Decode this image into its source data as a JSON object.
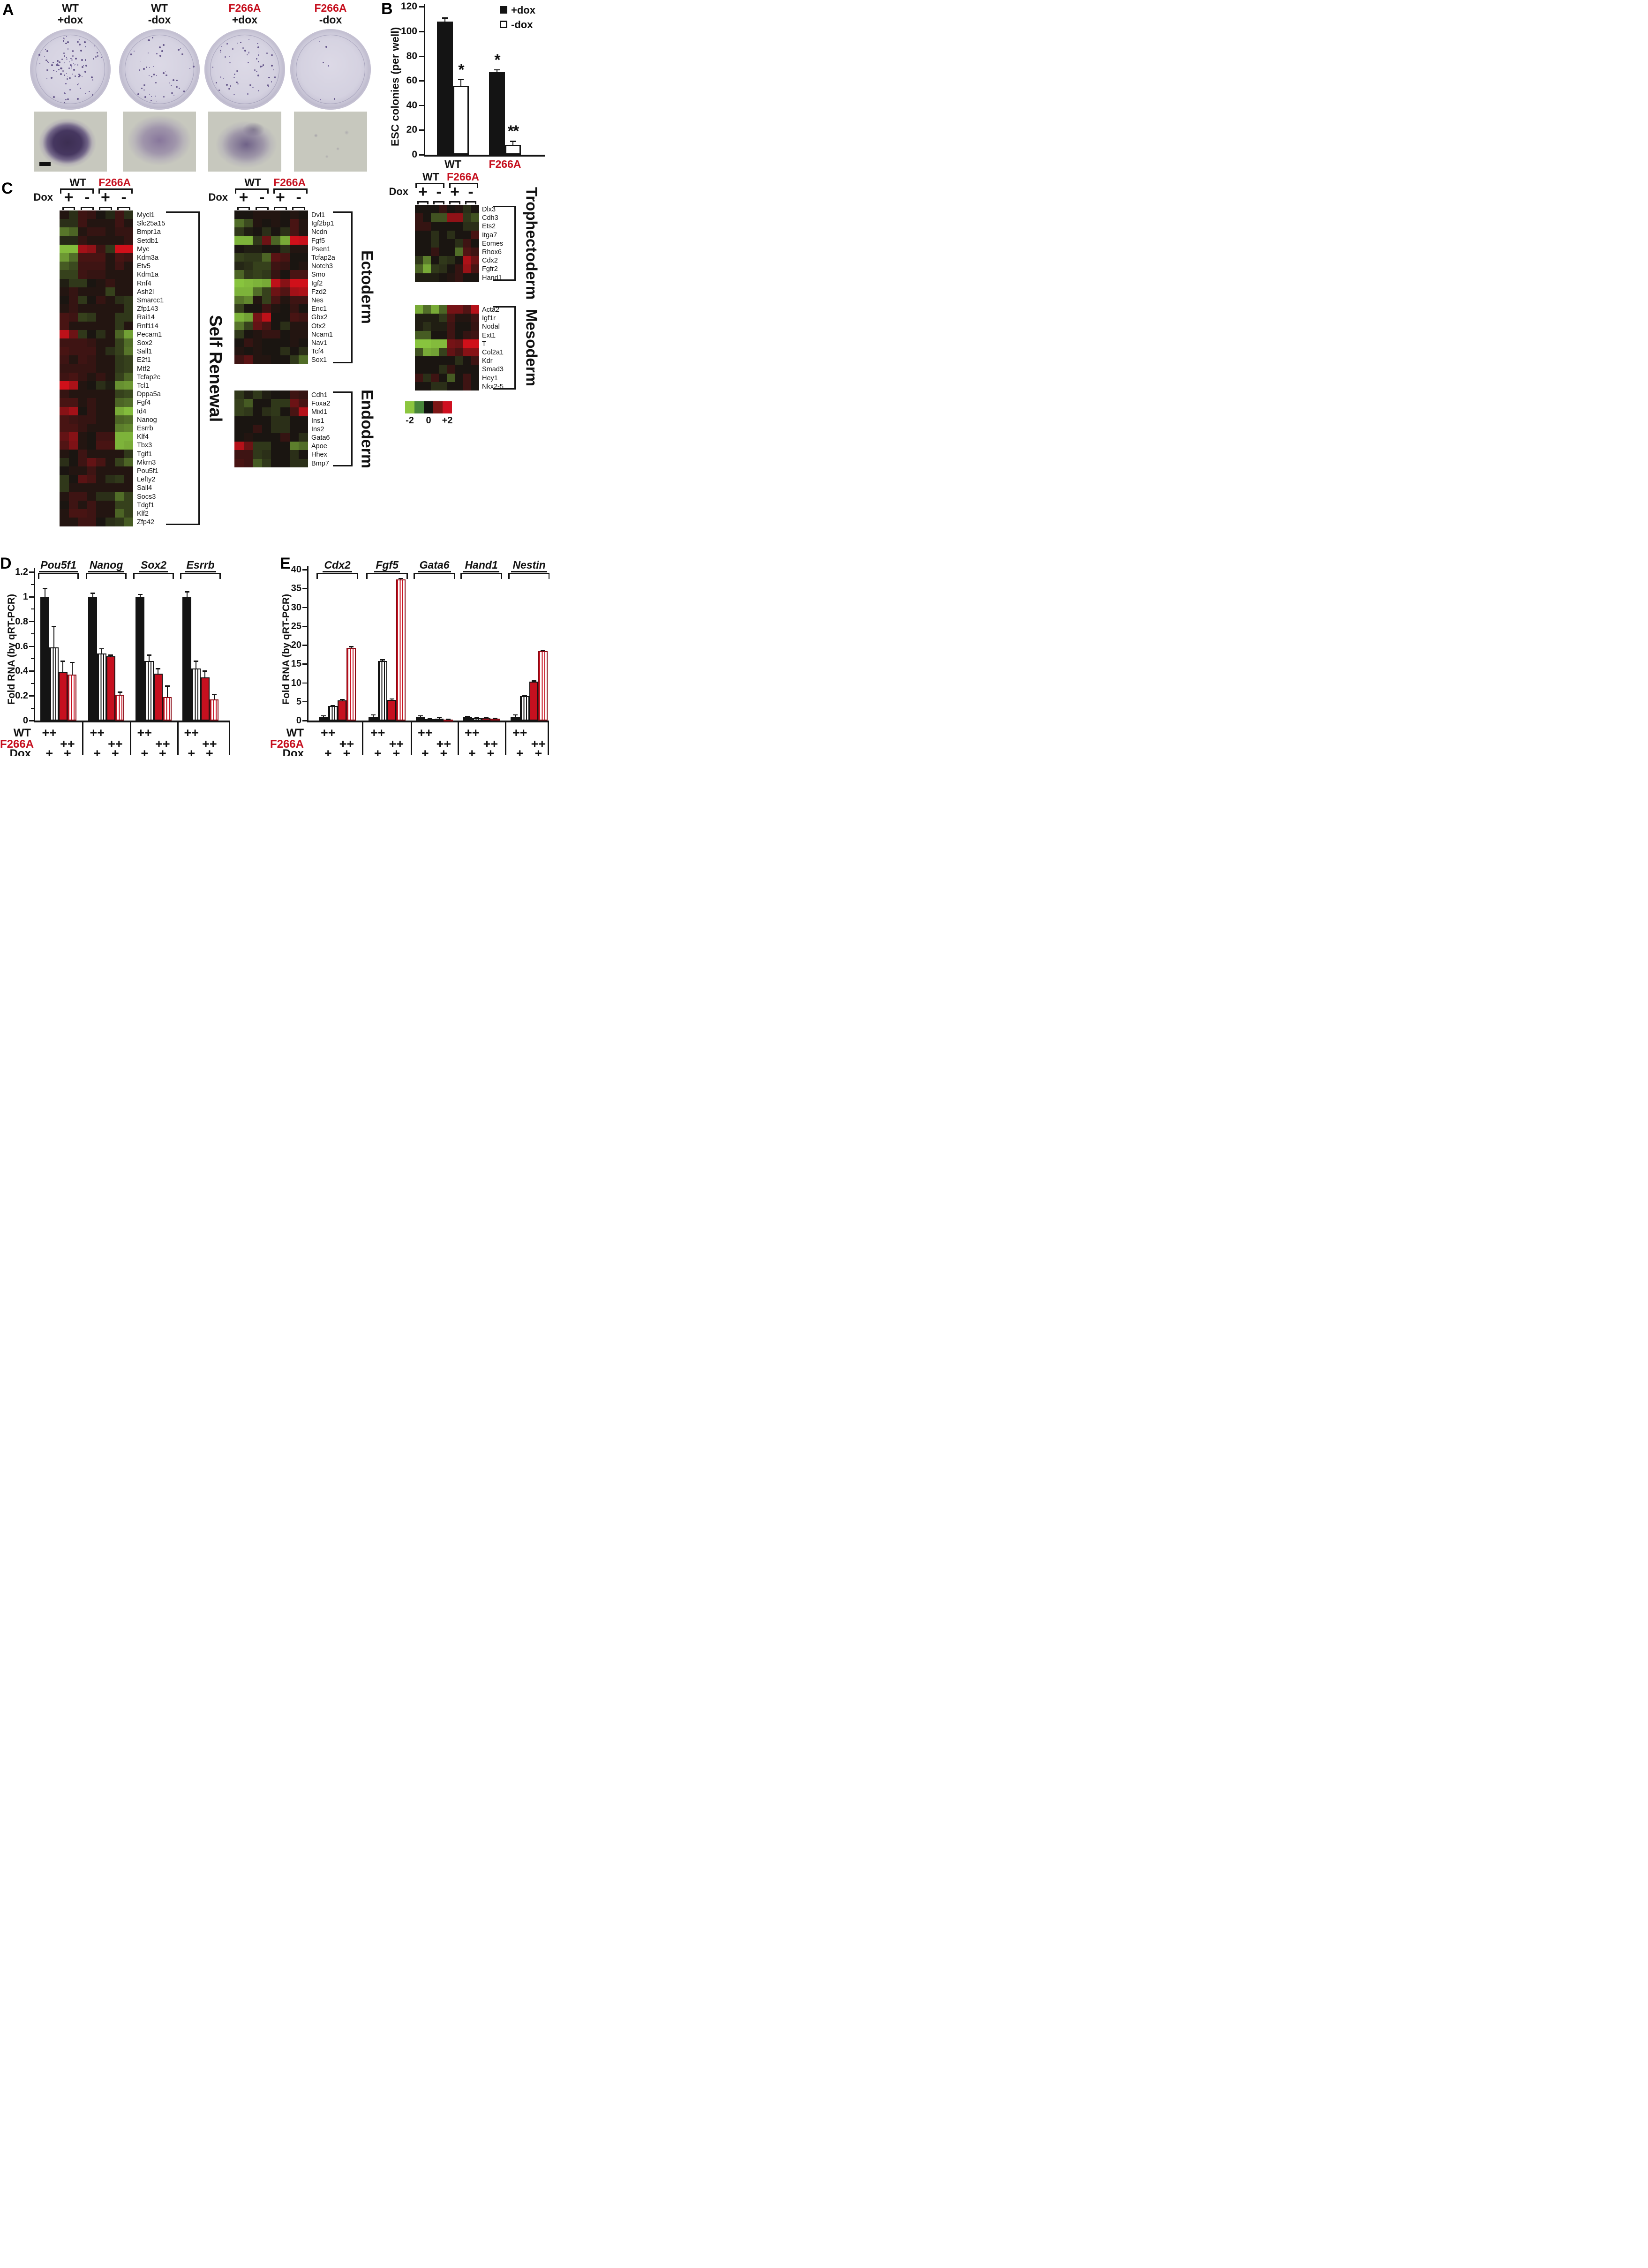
{
  "colors": {
    "accent_red": "#c6101f",
    "ink": "#141414"
  },
  "panelA": {
    "letter": "A",
    "columns": [
      {
        "genotype": "WT",
        "dox": "+dox",
        "genotype_color": "#141414",
        "colonies_visible": 105,
        "micrograph": "dense",
        "scalebar": true
      },
      {
        "genotype": "WT",
        "dox": "-dox",
        "genotype_color": "#141414",
        "colonies_visible": 52,
        "micrograph": "diffuse",
        "scalebar": false
      },
      {
        "genotype": "F266A",
        "dox": "+dox",
        "genotype_color": "#c6101f",
        "colonies_visible": 58,
        "micrograph": "branched",
        "scalebar": false
      },
      {
        "genotype": "F266A",
        "dox": "-dox",
        "genotype_color": "#c6101f",
        "colonies_visible": 6,
        "micrograph": "sparse",
        "scalebar": false
      }
    ]
  },
  "panelB": {
    "letter": "B"
  },
  "panelC": {
    "letter": "C",
    "header": {
      "wt": "WT",
      "mutant": "F266A",
      "dox": "Dox",
      "plus": "+",
      "minus": "-"
    },
    "colorbar": {
      "min": "-2",
      "mid": "0",
      "max": "+2"
    }
  },
  "panelD": {
    "letter": "D",
    "row_labels": {
      "wt": "WT",
      "mutant": "F266A",
      "dox": "Dox"
    }
  },
  "panelE": {
    "letter": "E",
    "row_labels": {
      "wt": "WT",
      "mutant": "F266A",
      "dox": "Dox"
    }
  },
  "chart_data": [
    {
      "id": "B",
      "type": "bar",
      "title": "",
      "ylabel": "ESC colonies (per well)",
      "ylim": [
        0,
        120
      ],
      "ytick_step": 20,
      "categories": [
        {
          "label": "WT",
          "color": "#141414"
        },
        {
          "label": "F266A",
          "color": "#c6101f"
        }
      ],
      "legend": [
        {
          "label": "+dox",
          "fill": "black"
        },
        {
          "label": "-dox",
          "fill": "white"
        }
      ],
      "series": [
        {
          "name": "+dox",
          "values": [
            108,
            67
          ],
          "errors": [
            3,
            2
          ]
        },
        {
          "name": "-dox",
          "values": [
            56,
            8
          ],
          "errors": [
            5,
            3
          ]
        }
      ],
      "significance": [
        {
          "bar": "WT -dox",
          "mark": "*"
        },
        {
          "bar": "F266A +dox",
          "mark": "*"
        },
        {
          "bar": "F266A -dox",
          "mark": "**"
        }
      ]
    },
    {
      "id": "C-self-renewal",
      "type": "heatmap",
      "bracket_label": "Self Renewal",
      "scale": [
        -2,
        2
      ],
      "columns": [
        "WT +dox r1",
        "WT +dox r2",
        "WT -dox r1",
        "WT -dox r2",
        "F266A +dox r1",
        "F266A +dox r2",
        "F266A -dox r1",
        "F266A -dox r2"
      ],
      "genes": [
        "Mycl1",
        "Slc25a15",
        "Bmpr1a",
        "Setdb1",
        "Myc",
        "Kdm3a",
        "Etv5",
        "Kdm1a",
        "Rnf4",
        "Ash2l",
        "Smarcc1",
        "Zfp143",
        "Rai14",
        "Rnf114",
        "Pecam1",
        "Sox2",
        "Sall1",
        "E2f1",
        "Mtf2",
        "Tcfap2c",
        "Tcl1",
        "Dppa5a",
        "Fgf4",
        "Id4",
        "Nanog",
        "Esrrb",
        "Klf4",
        "Tbx3",
        "Tgif1",
        "Mkrn3",
        "Pou5f1",
        "Lefty2",
        "Sall4",
        "Socs3",
        "Tdgf1",
        "Klf2",
        "Zfp42"
      ],
      "values": [
        [
          0.1,
          -0.3,
          0.4,
          0.3,
          0,
          -0.2,
          0.4,
          -0.3
        ],
        [
          -0.3,
          -0.3,
          0.4,
          0.1,
          0.1,
          0.1,
          0.4,
          0.1
        ],
        [
          -1.1,
          -0.9,
          0.1,
          0.3,
          0.3,
          0.1,
          0.3,
          0.3
        ],
        [
          -0.2,
          -0.2,
          0.3,
          0.1,
          0.1,
          0.1,
          0.1,
          0.3
        ],
        [
          -1.9,
          -1.9,
          1.5,
          1.3,
          0.4,
          -0.4,
          2,
          2
        ],
        [
          -1.5,
          -1,
          0.5,
          0.5,
          0.5,
          0.1,
          0.5,
          0.4
        ],
        [
          -0.8,
          -0.6,
          0.4,
          0.4,
          0.4,
          0.1,
          0.4,
          0.1
        ],
        [
          -0.5,
          -0.5,
          0.4,
          0.3,
          0.3,
          0.1,
          0.1,
          0.1
        ],
        [
          -0.1,
          -0.4,
          -0.4,
          0,
          0.1,
          0.3,
          0.1,
          0.1
        ],
        [
          0.1,
          0.3,
          0.1,
          0.1,
          0.1,
          -0.5,
          0.1,
          0.1
        ],
        [
          0,
          0.3,
          -0.4,
          0,
          0.3,
          0.1,
          -0.3,
          -0.4
        ],
        [
          0.1,
          0.3,
          0.1,
          0.1,
          0.1,
          0.1,
          0.1,
          -0.4
        ],
        [
          0.5,
          0.4,
          -0.5,
          -0.4,
          0.1,
          0.1,
          -0.4,
          -0.4
        ],
        [
          0.5,
          0.1,
          0.1,
          0.1,
          0.1,
          0.1,
          -0.4,
          0.1
        ],
        [
          1.8,
          0.9,
          -0.4,
          0,
          -0.3,
          0.1,
          -0.9,
          -1.6
        ],
        [
          0.4,
          0.4,
          0.4,
          0.3,
          0.1,
          0.1,
          -0.5,
          -1
        ],
        [
          0.5,
          0.4,
          0.4,
          0.4,
          0.1,
          -0.3,
          -0.5,
          -1.1
        ],
        [
          0.4,
          0.1,
          0.4,
          0.3,
          0.1,
          0.1,
          -0.4,
          -0.5
        ],
        [
          0.3,
          0.3,
          0.3,
          0.3,
          0.1,
          0.1,
          -0.4,
          -0.5
        ],
        [
          0.4,
          0.5,
          0.3,
          0.1,
          0.3,
          0.1,
          -0.5,
          -0.9
        ],
        [
          2,
          1.6,
          0.1,
          0,
          -0.3,
          -0.1,
          -1.4,
          -1.5
        ],
        [
          0.3,
          0.1,
          0.1,
          0.1,
          0.1,
          0.1,
          -0.5,
          -0.6
        ],
        [
          0.5,
          0.5,
          0.1,
          0.3,
          0.1,
          0.1,
          -0.9,
          -1
        ],
        [
          1.2,
          1.5,
          0,
          0.3,
          0.1,
          0.1,
          -1.7,
          -1.9
        ],
        [
          0.5,
          0.4,
          0.3,
          0.3,
          0.1,
          0.1,
          -0.9,
          -1
        ],
        [
          0.5,
          0.5,
          0.3,
          0.1,
          0.1,
          0.1,
          -1.2,
          -1.3
        ],
        [
          0.8,
          1.2,
          0.1,
          0,
          0.4,
          0.4,
          -1.8,
          -1.8
        ],
        [
          0.6,
          1.1,
          0.1,
          0,
          0.5,
          0.5,
          -1.8,
          -1.7
        ],
        [
          0.1,
          0,
          0.4,
          0.1,
          0.1,
          0.1,
          0.1,
          -0.4
        ],
        [
          -0.3,
          0,
          0.4,
          0.8,
          0.5,
          0.1,
          -0.5,
          -0.9
        ],
        [
          0,
          0.1,
          0.1,
          0.4,
          0.1,
          0.1,
          0.1,
          0.1
        ],
        [
          -0.4,
          0,
          0.7,
          0.5,
          0.1,
          -0.3,
          -0.4,
          0.1
        ],
        [
          -0.4,
          0.1,
          0.1,
          0.1,
          0.1,
          0.1,
          0.1,
          0.1
        ],
        [
          0.1,
          0.4,
          0.4,
          0.1,
          -0.3,
          -0.3,
          -1,
          -0.5
        ],
        [
          0,
          0.4,
          0.1,
          0.4,
          0.1,
          0.1,
          -0.5,
          -0.5
        ],
        [
          0.1,
          0.5,
          0.5,
          0.4,
          0.1,
          0.1,
          -0.9,
          -0.5
        ],
        [
          0.1,
          0.1,
          0.4,
          0.4,
          0,
          -0.3,
          -0.4,
          -0.8
        ]
      ]
    },
    {
      "id": "C-ectoderm",
      "type": "heatmap",
      "bracket_label": "Ectoderm",
      "scale": [
        -2,
        2
      ],
      "genes": [
        "Dvl1",
        "Igf2bp1",
        "Ncdn",
        "Fgf5",
        "Psen1",
        "Tcfap2a",
        "Notch3",
        "Smo",
        "Igf2",
        "Fzd2",
        "Nes",
        "Enc1",
        "Gbx2",
        "Otx2",
        "Ncam1",
        "Nav1",
        "Tcf4",
        "Sox1"
      ],
      "values": [
        [
          0,
          0,
          0.1,
          0.1,
          0.1,
          0,
          0.1,
          0
        ],
        [
          -1,
          -0.6,
          0.1,
          0,
          0.1,
          0,
          0.5,
          0.1
        ],
        [
          -0.4,
          -0.1,
          0,
          -0.3,
          0,
          -0.3,
          0.5,
          0.1
        ],
        [
          -1.8,
          -1.8,
          -0.4,
          0.9,
          -0.9,
          -1.7,
          2,
          1.9
        ],
        [
          0,
          -0.1,
          -0.1,
          0,
          0,
          -0.3,
          0.1,
          0.1
        ],
        [
          -0.5,
          -0.4,
          -0.4,
          -0.9,
          0.7,
          0.5,
          0,
          0
        ],
        [
          -0.2,
          -0.3,
          -0.5,
          -0.5,
          0.4,
          0.3,
          0,
          0.1
        ],
        [
          -0.9,
          -0.4,
          -0.5,
          -0.4,
          0.3,
          0,
          0.5,
          0.5
        ],
        [
          -2,
          -1.9,
          -1.8,
          -1.7,
          1.8,
          1.2,
          2,
          2
        ],
        [
          -1.8,
          -1.8,
          -1,
          -0.5,
          0.9,
          0.6,
          1.5,
          1.6
        ],
        [
          -1.1,
          -1.3,
          0.1,
          -0.5,
          0.5,
          0.1,
          0.4,
          0.4
        ],
        [
          -0.5,
          0,
          0,
          0.4,
          0.1,
          0,
          0.3,
          0
        ],
        [
          -1.8,
          -1.6,
          1,
          1.8,
          0,
          0,
          0.5,
          0.4
        ],
        [
          -1.1,
          -0.5,
          0.8,
          0.5,
          0,
          -0.3,
          0.1,
          0.1
        ],
        [
          -0.4,
          0,
          0.1,
          0.3,
          0.3,
          0,
          0.1,
          0.1
        ],
        [
          0,
          0.3,
          0.1,
          0,
          0,
          0,
          0.1,
          0
        ],
        [
          0.1,
          0,
          0.1,
          0,
          0,
          -0.3,
          0,
          -0.3
        ],
        [
          0.4,
          0.7,
          0.1,
          0.1,
          0,
          0,
          -0.4,
          -1
        ]
      ]
    },
    {
      "id": "C-endoderm",
      "type": "heatmap",
      "bracket_label": "Endoderm",
      "scale": [
        -2,
        2
      ],
      "genes": [
        "Cdh1",
        "Foxa2",
        "Mixl1",
        "Ins1",
        "Ins2",
        "Gata6",
        "Apoe",
        "Hhex",
        "Bmp7"
      ],
      "values": [
        [
          -0.4,
          -0.1,
          -0.4,
          -0.1,
          0,
          0,
          0.4,
          0.3
        ],
        [
          -0.5,
          -0.8,
          0,
          0,
          -0.4,
          -0.4,
          0.9,
          0.5
        ],
        [
          -0.5,
          -0.4,
          0,
          -0.3,
          -0.4,
          0,
          0.5,
          1.7
        ],
        [
          0,
          0,
          0,
          0,
          -0.3,
          -0.3,
          0,
          0
        ],
        [
          0,
          0,
          0.3,
          0,
          -0.3,
          -0.3,
          0,
          0
        ],
        [
          0,
          0.1,
          0,
          0,
          0,
          0.3,
          0,
          -0.3
        ],
        [
          1.7,
          0.9,
          -0.4,
          -0.4,
          0,
          0,
          -1.2,
          -1
        ],
        [
          0.4,
          0.4,
          -0.4,
          -0.3,
          0,
          0,
          -0.3,
          0
        ],
        [
          0.5,
          0.4,
          -0.8,
          -0.4,
          0,
          0,
          -0.3,
          -0.3
        ]
      ]
    },
    {
      "id": "C-trophectoderm",
      "type": "heatmap",
      "bracket_label": "Trophectoderm",
      "scale": [
        -2,
        2
      ],
      "genes": [
        "Dlx3",
        "Cdh3",
        "Ets2",
        "Itga7",
        "Eomes",
        "Rhox6",
        "Cdx2",
        "Fgfr2",
        "Hand1"
      ],
      "values": [
        [
          0,
          0,
          0,
          0.3,
          0,
          0.1,
          -0.3,
          0
        ],
        [
          0.3,
          0,
          -0.7,
          -0.7,
          1.3,
          1.3,
          -0.4,
          -0.7
        ],
        [
          0.3,
          0.3,
          0,
          0,
          0,
          0,
          -0.3,
          -0.3
        ],
        [
          0,
          0,
          -0.3,
          0,
          -0.3,
          0,
          0,
          0.5
        ],
        [
          0,
          0,
          -0.3,
          0,
          0,
          -0.3,
          0.4,
          0
        ],
        [
          0,
          0,
          0.3,
          0,
          0,
          -1,
          0.6,
          0.4
        ],
        [
          -0.4,
          -1.2,
          0,
          -0.4,
          -0.3,
          0,
          1.6,
          0.9
        ],
        [
          -0.9,
          -1.7,
          -0.4,
          -0.3,
          0,
          0.3,
          1.4,
          0.5
        ],
        [
          -0.1,
          -0.1,
          -0.1,
          0,
          0.1,
          0.3,
          0,
          0
        ]
      ]
    },
    {
      "id": "C-mesoderm",
      "type": "heatmap",
      "bracket_label": "Mesoderm",
      "scale": [
        -2,
        2
      ],
      "genes": [
        "Acta2",
        "Igf1r",
        "Nodal",
        "Ext1",
        "T",
        "Col2a1",
        "Kdr",
        "Smad3",
        "Hey1",
        "Nkx2-5"
      ],
      "values": [
        [
          -1.7,
          -1,
          -1.7,
          -0.9,
          1,
          1,
          0.6,
          1.7
        ],
        [
          -0.1,
          -0.1,
          -0.1,
          -0.4,
          0.5,
          0.1,
          0.1,
          0.4
        ],
        [
          -0.1,
          -0.3,
          -0.1,
          -0.1,
          0.4,
          0,
          0,
          0.3
        ],
        [
          -0.8,
          -0.8,
          0,
          0,
          0.4,
          0,
          0.3,
          0.4
        ],
        [
          -2,
          -2,
          -1.9,
          -1.9,
          1,
          0.9,
          2,
          2
        ],
        [
          -0.7,
          -1.7,
          -1.6,
          -0.5,
          0.8,
          0.5,
          1.2,
          1.2
        ],
        [
          0,
          0,
          0,
          0,
          0,
          -0.3,
          0,
          0.4
        ],
        [
          0,
          0,
          0,
          -0.3,
          0.3,
          0,
          0,
          0
        ],
        [
          0.4,
          -0.3,
          0.4,
          0,
          -0.8,
          0,
          0.4,
          0
        ],
        [
          0,
          0,
          -0.3,
          -0.3,
          0,
          0,
          0.4,
          0
        ]
      ]
    },
    {
      "id": "D",
      "type": "bar",
      "ylabel": "Fold RNA (by qRT-PCR)",
      "ylim": [
        0,
        1.2
      ],
      "ytick_step": 0.2,
      "groups": [
        "Pou5f1",
        "Nanog",
        "Sox2",
        "Esrrb"
      ],
      "bar_conditions": [
        {
          "genotype": "WT",
          "dox": "+",
          "style": "solid-black"
        },
        {
          "genotype": "WT",
          "dox": "-",
          "style": "striped-black"
        },
        {
          "genotype": "F266A",
          "dox": "+",
          "style": "solid-red"
        },
        {
          "genotype": "F266A",
          "dox": "-",
          "style": "striped-red"
        }
      ],
      "values": [
        [
          1,
          0.59,
          0.39,
          0.37
        ],
        [
          1,
          0.54,
          0.52,
          0.21
        ],
        [
          1,
          0.48,
          0.38,
          0.19
        ],
        [
          1,
          0.42,
          0.35,
          0.17
        ]
      ],
      "errors": [
        [
          0.07,
          0.17,
          0.09,
          0.1
        ],
        [
          0.03,
          0.04,
          0.01,
          0.02
        ],
        [
          0.02,
          0.05,
          0.04,
          0.09
        ],
        [
          0.04,
          0.06,
          0.05,
          0.04
        ]
      ]
    },
    {
      "id": "E",
      "type": "bar",
      "ylabel": "Fold RNA (by qRT-PCR)",
      "ylim": [
        0,
        40
      ],
      "ytick_step": 5,
      "groups": [
        "Cdx2",
        "Fgf5",
        "Gata6",
        "Hand1",
        "Nestin"
      ],
      "bar_conditions": [
        {
          "genotype": "WT",
          "dox": "+",
          "style": "solid-black"
        },
        {
          "genotype": "WT",
          "dox": "-",
          "style": "striped-black"
        },
        {
          "genotype": "F266A",
          "dox": "+",
          "style": "solid-red"
        },
        {
          "genotype": "F266A",
          "dox": "-",
          "style": "striped-red"
        }
      ],
      "values": [
        [
          1,
          3.8,
          5.4,
          19.3
        ],
        [
          1,
          15.8,
          5.5,
          37.4
        ],
        [
          1,
          0.35,
          0.55,
          0.25
        ],
        [
          1,
          0.65,
          0.75,
          0.5
        ],
        [
          1,
          6.5,
          10.3,
          18.4
        ]
      ],
      "errors": [
        [
          0.3,
          0.15,
          0.2,
          0.3
        ],
        [
          0.5,
          0.3,
          0.25,
          0.3
        ],
        [
          0.3,
          0.1,
          0.25,
          0.1
        ],
        [
          0.15,
          0.1,
          0.12,
          0.1
        ],
        [
          0.5,
          0.15,
          0.2,
          0.2
        ]
      ]
    }
  ]
}
